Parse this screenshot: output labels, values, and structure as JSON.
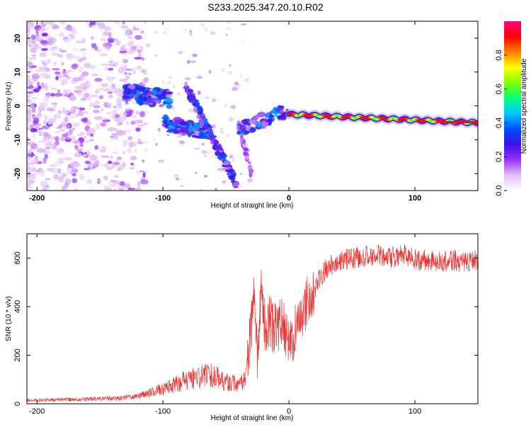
{
  "title": "S233.2025.347.20.10.R02",
  "chart_data": [
    {
      "type": "heatmap",
      "xlabel": "Height of straight line (km)",
      "ylabel": "Frequency (Hz)",
      "xlim": [
        -208,
        150
      ],
      "ylim": [
        -25,
        25
      ],
      "xticks": [
        -200,
        -100,
        0,
        100
      ],
      "yticks": [
        -20,
        -10,
        0,
        10,
        20
      ],
      "colorbar": {
        "label": "Normalized spectral amplitude",
        "range": [
          0,
          1
        ],
        "ticks": [
          0.0,
          0.2,
          0.4,
          0.6,
          0.8
        ],
        "tick_labels": [
          "0.0",
          "0.2",
          "0.4",
          "0.6",
          "0.8"
        ],
        "colormap": [
          "#ffffff",
          "#e2bff5",
          "#9b30ff",
          "#3a10e0",
          "#0050ff",
          "#00c8ff",
          "#00ff80",
          "#80ff00",
          "#ffff00",
          "#ff8000",
          "#ff0000",
          "#ff0080"
        ]
      },
      "features": [
        {
          "name": "continuous band",
          "x_start": 0,
          "x_end": 150,
          "freq_start": -2.5,
          "freq_end": -5,
          "amplitude": 0.9
        },
        {
          "name": "descending streak",
          "x_start": -80,
          "x_end": -42,
          "freq_start": 5,
          "freq_end": -23,
          "amplitude": 0.35
        },
        {
          "name": "upper cluster",
          "x_start": -130,
          "x_end": -95,
          "freq_center": 3,
          "amplitude": 0.35
        },
        {
          "name": "lower cluster",
          "x_start": -100,
          "x_end": -60,
          "freq_center": -6,
          "amplitude": 0.35
        },
        {
          "name": "scatter noise",
          "x_start": -208,
          "x_end": -140,
          "freq_range": [
            -25,
            25
          ],
          "amplitude": 0.1
        }
      ]
    },
    {
      "type": "line",
      "xlabel": "Height of straight line (km)",
      "ylabel": "SNR (10 * v/v)",
      "xlim": [
        -208,
        150
      ],
      "ylim": [
        0,
        700
      ],
      "xticks": [
        -200,
        -100,
        0,
        100
      ],
      "yticks": [
        0,
        200,
        400,
        600
      ],
      "color": "#ee3333",
      "series": [
        {
          "name": "SNR",
          "x": [
            -208,
            -190,
            -170,
            -150,
            -130,
            -120,
            -110,
            -100,
            -90,
            -80,
            -70,
            -60,
            -50,
            -40,
            -35,
            -30,
            -28,
            -25,
            -22,
            -20,
            -18,
            -15,
            -12,
            -10,
            -5,
            0,
            5,
            10,
            15,
            20,
            25,
            30,
            40,
            50,
            60,
            70,
            80,
            90,
            100,
            110,
            120,
            130,
            140,
            150
          ],
          "values": [
            15,
            15,
            18,
            20,
            25,
            30,
            45,
            60,
            80,
            100,
            110,
            120,
            90,
            80,
            100,
            300,
            450,
            200,
            500,
            350,
            300,
            350,
            300,
            320,
            330,
            250,
            300,
            380,
            420,
            460,
            520,
            560,
            590,
            600,
            605,
            610,
            600,
            615,
            595,
            590,
            580,
            590,
            585,
            590
          ]
        }
      ]
    }
  ]
}
